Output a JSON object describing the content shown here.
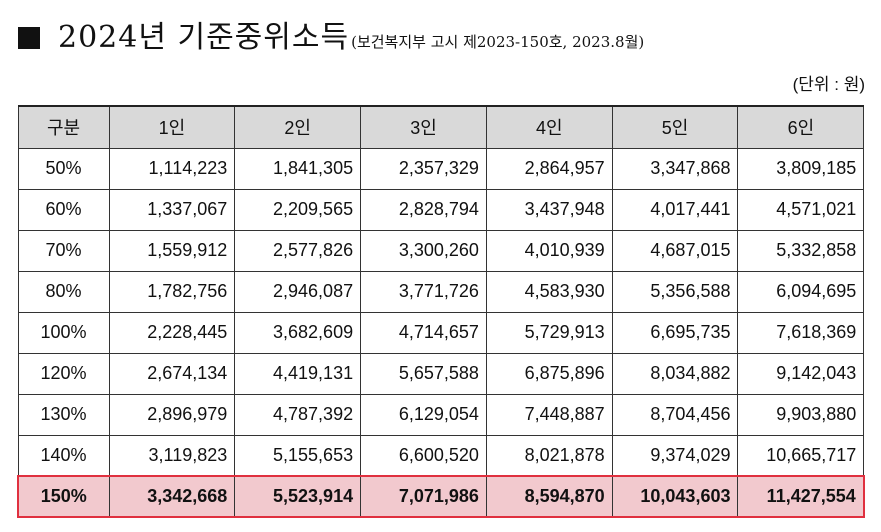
{
  "title": {
    "main": "2024년 기준중위소득",
    "sub": "(보건복지부 고시 제2023-150호, 2023.8월)"
  },
  "unit": "(단위 : 원)",
  "table": {
    "headers": [
      "구분",
      "1인",
      "2인",
      "3인",
      "4인",
      "5인",
      "6인"
    ],
    "rows": [
      {
        "label": "50%",
        "values": [
          "1,114,223",
          "1,841,305",
          "2,357,329",
          "2,864,957",
          "3,347,868",
          "3,809,185"
        ]
      },
      {
        "label": "60%",
        "values": [
          "1,337,067",
          "2,209,565",
          "2,828,794",
          "3,437,948",
          "4,017,441",
          "4,571,021"
        ]
      },
      {
        "label": "70%",
        "values": [
          "1,559,912",
          "2,577,826",
          "3,300,260",
          "4,010,939",
          "4,687,015",
          "5,332,858"
        ]
      },
      {
        "label": "80%",
        "values": [
          "1,782,756",
          "2,946,087",
          "3,771,726",
          "4,583,930",
          "5,356,588",
          "6,094,695"
        ]
      },
      {
        "label": "100%",
        "values": [
          "2,228,445",
          "3,682,609",
          "4,714,657",
          "5,729,913",
          "6,695,735",
          "7,618,369"
        ]
      },
      {
        "label": "120%",
        "values": [
          "2,674,134",
          "4,419,131",
          "5,657,588",
          "6,875,896",
          "8,034,882",
          "9,142,043"
        ]
      },
      {
        "label": "130%",
        "values": [
          "2,896,979",
          "4,787,392",
          "6,129,054",
          "7,448,887",
          "8,704,456",
          "9,903,880"
        ]
      },
      {
        "label": "140%",
        "values": [
          "3,119,823",
          "5,155,653",
          "6,600,520",
          "8,021,878",
          "9,374,029",
          "10,665,717"
        ]
      },
      {
        "label": "150%",
        "values": [
          "3,342,668",
          "5,523,914",
          "7,071,986",
          "8,594,870",
          "10,043,603",
          "11,427,554"
        ]
      }
    ],
    "highlight_color": "#f2c9ce",
    "highlight_border_color": "#e0303f",
    "header_bg": "#d9d9d9"
  }
}
